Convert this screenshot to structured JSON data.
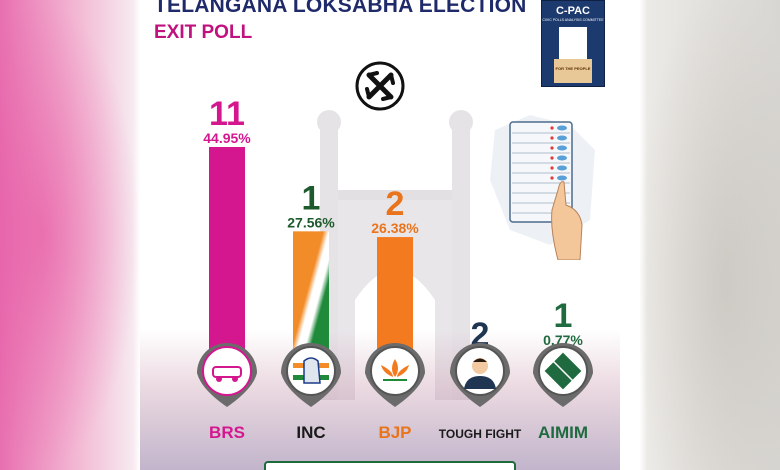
{
  "header": {
    "title": "TELANGANA LOKSABHA ELECTION",
    "subtitle": "EXIT POLL"
  },
  "logo": {
    "name": "C-PAC",
    "tagline": "CIVIC POLLS ANALYSIS COMMITTEE",
    "slogan": "FOR THE PEOPLE"
  },
  "colors": {
    "title": "#1f2a6b",
    "subtitle": "#c0117e",
    "BRS": "#d4178f",
    "INC_saffron": "#f28c28",
    "INC_green": "#1e8a3a",
    "BJP": "#f47a1f",
    "TOUGH_FIGHT": "#1f3552",
    "AIMIM": "#1f6b3f",
    "seat_dark_green": "#1d5a2c",
    "seat_orange": "#e9741c"
  },
  "chart_data": {
    "type": "bar",
    "title": "TELANGANA LOKSABHA ELECTION EXIT POLL",
    "categories": [
      "BRS",
      "INC",
      "BJP",
      "TOUGH FIGHT",
      "AIMIM"
    ],
    "seats": [
      11,
      1,
      2,
      2,
      1
    ],
    "vote_share_labels": [
      "44.95%",
      "27.56%",
      "26.38%",
      "",
      "0.77%"
    ],
    "vote_share": [
      44.95,
      27.56,
      26.38,
      null,
      0.77
    ],
    "icons": [
      "brs-car-icon",
      "inc-hand-icon",
      "bjp-lotus-icon",
      "person-icon",
      "aimim-kite-icon"
    ]
  }
}
